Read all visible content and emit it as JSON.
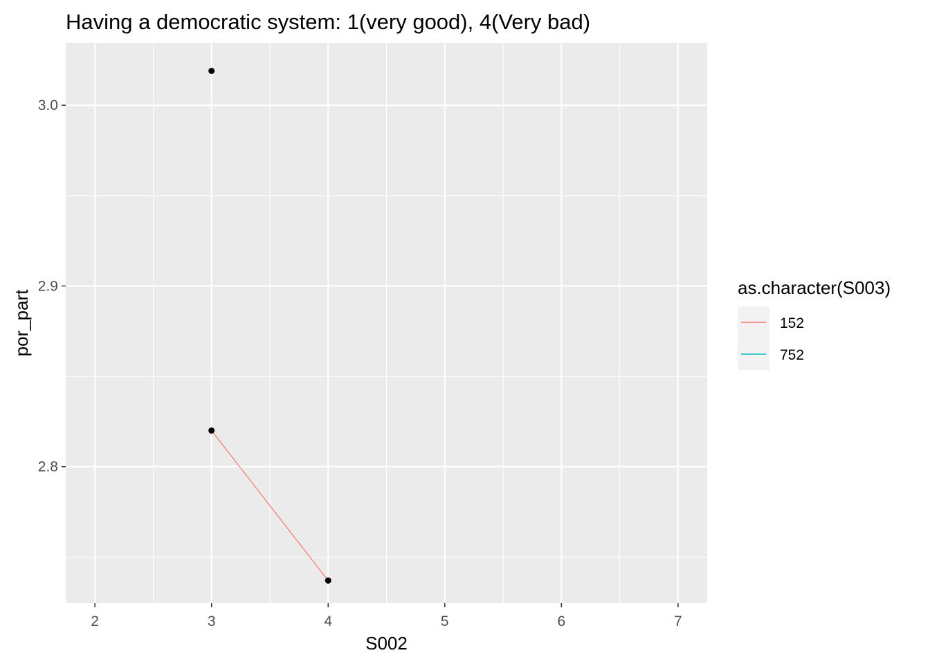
{
  "chart_data": {
    "type": "line",
    "title": "Having a democratic system: 1(very good), 4(Very bad)",
    "xlabel": "S002",
    "ylabel": "por_part",
    "xlim": [
      1.75,
      7.25
    ],
    "ylim": [
      2.7245,
      3.0345
    ],
    "x_ticks": [
      2,
      3,
      4,
      5,
      6,
      7
    ],
    "x_tick_labels": [
      "2",
      "3",
      "4",
      "5",
      "6",
      "7"
    ],
    "y_ticks": [
      2.8,
      2.9,
      3.0
    ],
    "y_tick_labels": [
      "2.8",
      "2.9",
      "3.0"
    ],
    "grid": true,
    "legend_position": "right",
    "legend_title": "as.character(S003)",
    "series": [
      {
        "name": "152",
        "color": "#F8766D",
        "x": [
          3,
          4
        ],
        "y": [
          2.82,
          2.737
        ]
      },
      {
        "name": "752",
        "color": "#00BFC4",
        "x": [
          3
        ],
        "y": [
          3.019
        ]
      }
    ],
    "point_color": "#000000"
  }
}
